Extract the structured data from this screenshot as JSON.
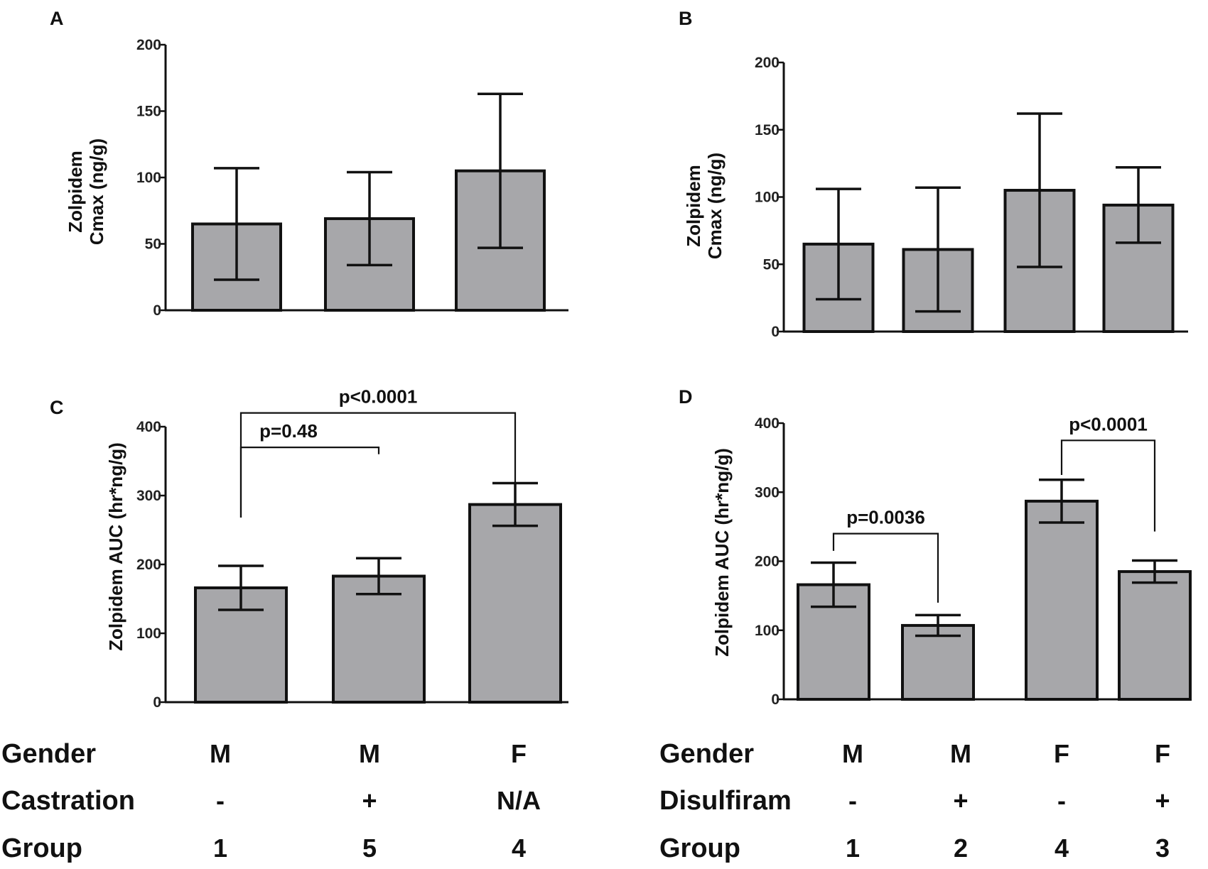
{
  "chart_data": [
    {
      "id": "A",
      "panel_label": "A",
      "type": "bar",
      "ylabel_lines": [
        "Zolpidem",
        "Cmax (ng/g)"
      ],
      "ylim": [
        0,
        200
      ],
      "yticks": [
        "0",
        "50",
        "100",
        "150",
        "200"
      ],
      "categories": [
        "Group 1",
        "Group 5",
        "Group 4"
      ],
      "values": [
        65,
        69,
        105
      ],
      "errors": [
        42,
        35,
        58
      ],
      "comparisons": []
    },
    {
      "id": "B",
      "panel_label": "B",
      "type": "bar",
      "ylabel_lines": [
        "Zolpidem",
        "Cmax (ng/g)"
      ],
      "ylim": [
        0,
        200
      ],
      "yticks": [
        "0",
        "50",
        "100",
        "150",
        "200"
      ],
      "categories": [
        "Group 1",
        "Group 2",
        "Group 4",
        "Group 3"
      ],
      "values": [
        65,
        61,
        105,
        94
      ],
      "errors": [
        41,
        46,
        57,
        28
      ],
      "comparisons": []
    },
    {
      "id": "C",
      "panel_label": "C",
      "type": "bar",
      "ylabel_lines": [
        "Zolpidem AUC (hr*ng/g)"
      ],
      "ylim": [
        0,
        400
      ],
      "yticks": [
        "0",
        "100",
        "200",
        "300",
        "400"
      ],
      "categories": [
        "Group 1",
        "Group 5",
        "Group 4"
      ],
      "values": [
        166,
        183,
        287
      ],
      "errors": [
        32,
        26,
        31
      ],
      "comparisons": [
        {
          "label": "p=0.48",
          "from": 0,
          "to": 1,
          "y": 370,
          "left_end": 268,
          "right_end": 360
        },
        {
          "label": "p<0.0001",
          "from": 0,
          "to": 2,
          "y": 420,
          "left_end": 268,
          "right_end": 290
        }
      ]
    },
    {
      "id": "D",
      "panel_label": "D",
      "type": "bar",
      "ylabel_lines": [
        "Zolpidem AUC (hr*ng/g)"
      ],
      "ylim": [
        0,
        400
      ],
      "yticks": [
        "0",
        "100",
        "200",
        "300",
        "400"
      ],
      "categories": [
        "Group 1",
        "Group 2",
        "Group 4",
        "Group 3"
      ],
      "values": [
        166,
        107,
        287,
        185
      ],
      "errors": [
        32,
        15,
        31,
        16
      ],
      "comparisons": [
        {
          "label": "p=0.0036",
          "from": 0,
          "to": 1,
          "y": 240,
          "left_end": 215,
          "right_end": 140
        },
        {
          "label": "p<0.0001",
          "from": 2,
          "to": 3,
          "y": 375,
          "left_end": 325,
          "right_end": 243
        }
      ]
    }
  ],
  "tables": [
    {
      "id": "left",
      "rows": [
        {
          "header": "Gender",
          "cells": [
            "M",
            "M",
            "F"
          ]
        },
        {
          "header": "Castration",
          "cells": [
            "-",
            "+",
            "N/A"
          ]
        },
        {
          "header": "Group",
          "cells": [
            "1",
            "5",
            "4"
          ]
        }
      ]
    },
    {
      "id": "right",
      "rows": [
        {
          "header": "Gender",
          "cells": [
            "M",
            "M",
            "F",
            "F"
          ]
        },
        {
          "header": "Disulfiram",
          "cells": [
            "-",
            "+",
            "-",
            "+"
          ]
        },
        {
          "header": "Group",
          "cells": [
            "1",
            "2",
            "4",
            "3"
          ]
        }
      ]
    }
  ],
  "colors": {
    "bar_fill": "#a7a7aa",
    "stroke": "#111111"
  }
}
